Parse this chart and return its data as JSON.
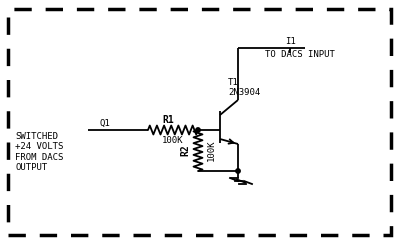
{
  "bg_color": "#ffffff",
  "line_color": "#000000",
  "font_color": "#000000",
  "font_family": "monospace",
  "labels": {
    "q1": "Q1",
    "switched": "SWITCHED\n+24 VOLTS\nFROM DACS\nOUTPUT",
    "r1": "R1",
    "r1_val": "100K",
    "r2": "R2",
    "r2_val": "100K",
    "t1": "T1\n2N3904",
    "i1": "I1",
    "to_dacs": "TO DACS INPUT"
  },
  "figsize": [
    4.0,
    2.43
  ],
  "dpi": 100
}
